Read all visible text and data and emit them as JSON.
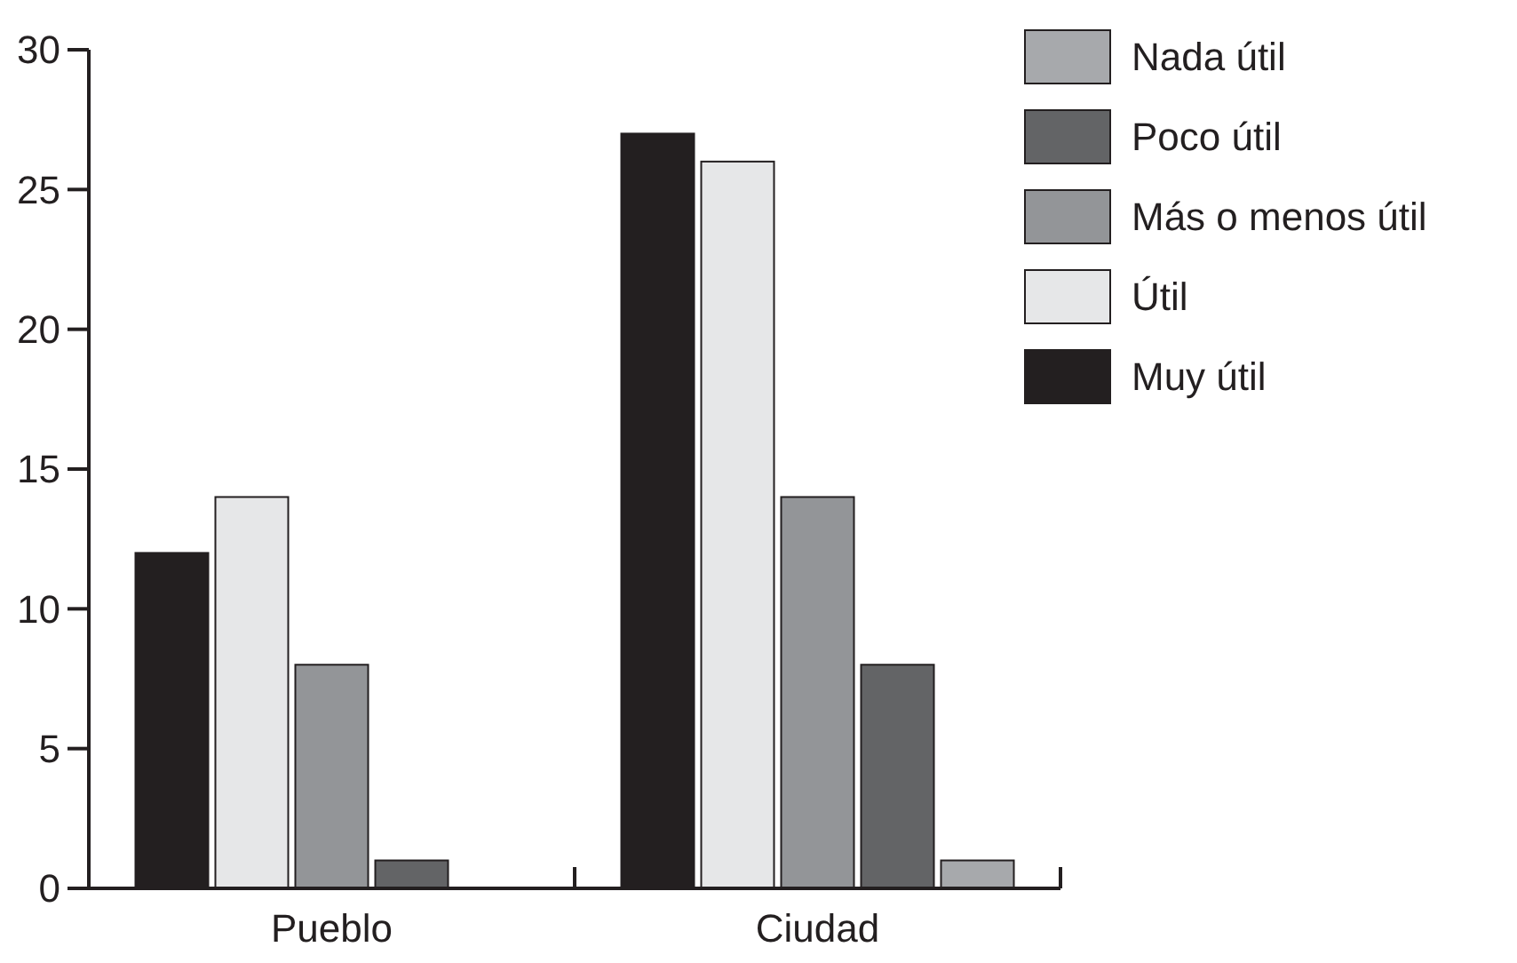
{
  "chart_data": {
    "type": "bar",
    "categories": [
      "Pueblo",
      "Ciudad"
    ],
    "series": [
      {
        "name": "Muy útil",
        "color": "#231f20",
        "values": [
          12,
          27
        ]
      },
      {
        "name": "Útil",
        "color": "#e6e7e8",
        "values": [
          14,
          26
        ]
      },
      {
        "name": "Más o menos útil",
        "color": "#939598",
        "values": [
          8,
          14
        ]
      },
      {
        "name": "Poco útil",
        "color": "#636466",
        "values": [
          1,
          8
        ]
      },
      {
        "name": "Nada útil",
        "color": "#a7a9ac",
        "values": [
          0,
          1
        ]
      }
    ],
    "ylim": [
      0,
      30
    ],
    "yticks": [
      0,
      5,
      10,
      15,
      20,
      25,
      30
    ],
    "grid": false,
    "legend": "top right"
  }
}
